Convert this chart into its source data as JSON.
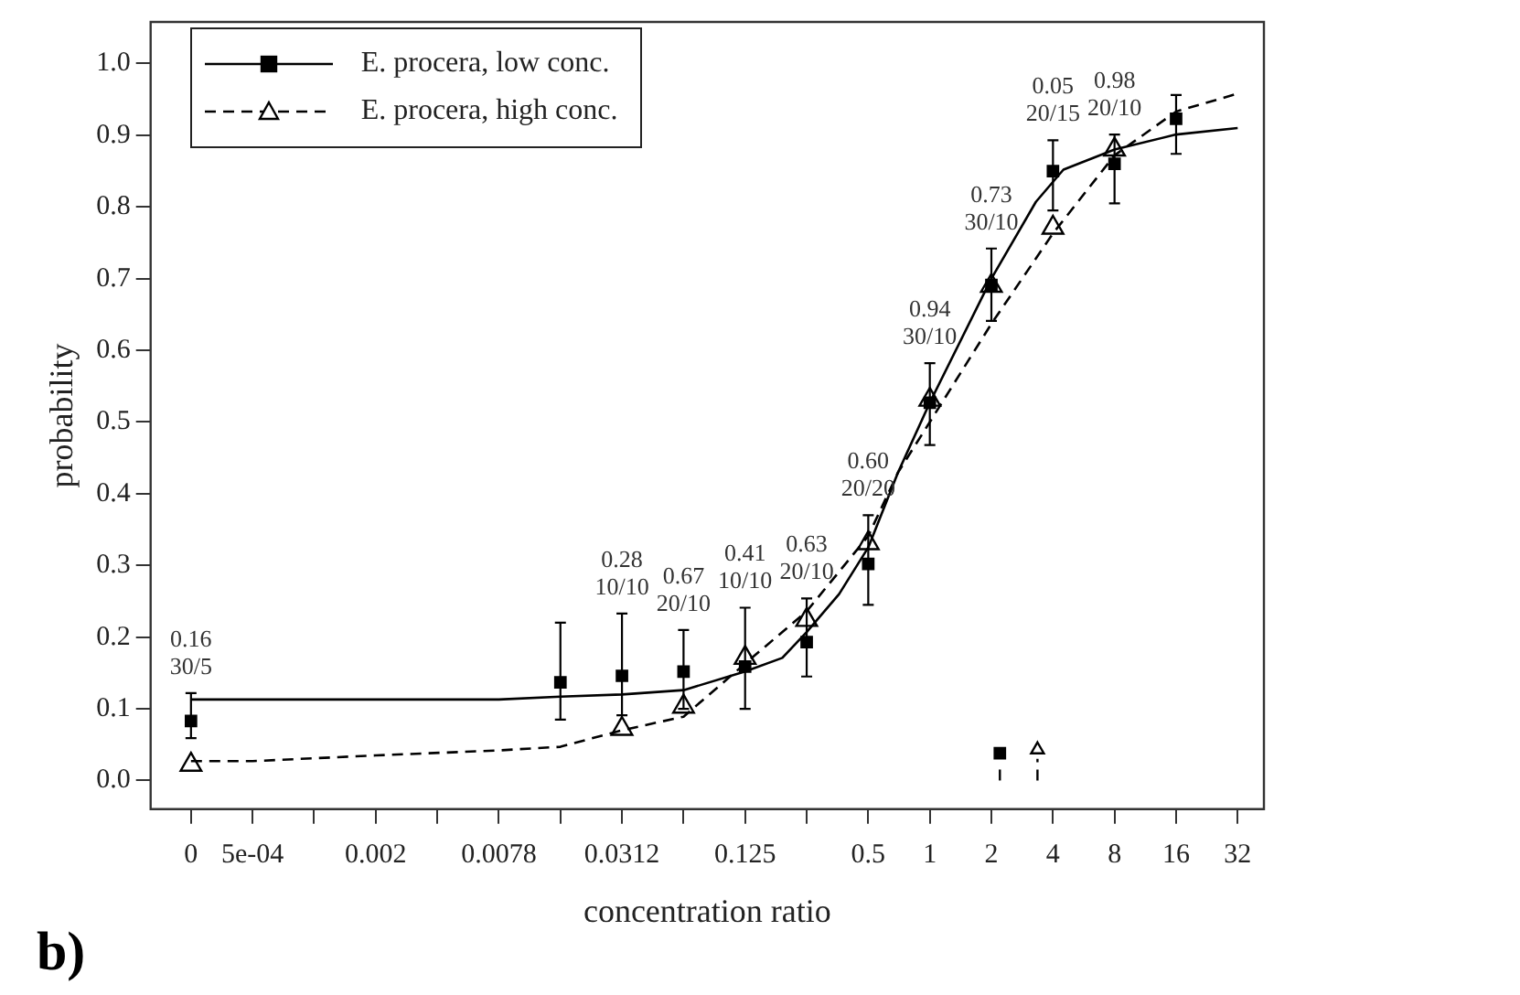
{
  "chart_data": {
    "type": "scatter",
    "xlabel": "concentration ratio",
    "ylabel": "probability",
    "log": "x",
    "grid": false,
    "legend": "top left",
    "xlim": [
      0.000155,
      43
    ],
    "ylim": [
      -0.04,
      1.058
    ],
    "xticks": [
      {
        "value": 0.000244140625,
        "label": "0"
      },
      {
        "value": 0.00048828125,
        "label": "5e-04"
      },
      {
        "value": 0.0009765625,
        "label": null
      },
      {
        "value": 0.001953125,
        "label": "0.002"
      },
      {
        "value": 0.00390625,
        "label": null
      },
      {
        "value": 0.0078125,
        "label": "0.0078"
      },
      {
        "value": 0.015625,
        "label": null
      },
      {
        "value": 0.03125,
        "label": "0.0312"
      },
      {
        "value": 0.0625,
        "label": null
      },
      0.125,
      {
        "value": 0.25,
        "label": null
      },
      0.5,
      1,
      2,
      4,
      8,
      16,
      32
    ],
    "yticks": [
      {
        "value": 0,
        "label": "0.0"
      },
      0.1,
      0.2,
      0.3,
      0.4,
      0.5,
      0.6,
      0.7,
      0.8,
      0.9,
      {
        "value": 1,
        "label": "1.0"
      }
    ],
    "series": [
      {
        "type": "line",
        "color": "#000000",
        "line_style": "solid",
        "marker": "none",
        "x": [
          0.000244140625,
          0.0078125,
          0.015625,
          0.03125,
          0.0625,
          0.125,
          0.19,
          0.25,
          0.36,
          0.5,
          0.7,
          1,
          2,
          3.3,
          4.5,
          8,
          16,
          32
        ],
        "values": [
          0.113,
          0.113,
          0.117,
          0.12,
          0.126,
          0.152,
          0.171,
          0.207,
          0.26,
          0.325,
          0.43,
          0.527,
          0.7,
          0.807,
          0.852,
          0.88,
          0.901,
          0.91
        ]
      },
      {
        "type": "line",
        "color": "#000000",
        "line_style": "dashed",
        "marker": "none",
        "x": [
          0.000244140625,
          0.00048828125,
          0.001953125,
          0.0078125,
          0.015625,
          0.03125,
          0.0625,
          0.125,
          0.25,
          0.5,
          0.7,
          1,
          2,
          4,
          8,
          16,
          32
        ],
        "values": [
          0.027,
          0.027,
          0.035,
          0.042,
          0.047,
          0.07,
          0.089,
          0.163,
          0.236,
          0.341,
          0.43,
          0.5,
          0.637,
          0.763,
          0.872,
          0.933,
          0.958
        ]
      },
      {
        "name": "E. procera, low conc.",
        "color": "#000000",
        "marker": "square",
        "line_style": "solid",
        "x": [
          0.000244140625,
          0.015625,
          0.03125,
          0.0625,
          0.125,
          0.25,
          0.5,
          1,
          2,
          4,
          8,
          16
        ],
        "values": [
          0.083,
          0.137,
          0.146,
          0.152,
          0.159,
          0.193,
          0.302,
          0.527,
          0.691,
          0.85,
          0.86,
          0.923
        ],
        "errors": [
          [
            0.059,
            0.122
          ],
          [
            0.085,
            0.22
          ],
          [
            0.091,
            0.233
          ],
          [
            0.1,
            0.21
          ],
          [
            0.1,
            0.241
          ],
          [
            0.145,
            0.254
          ],
          [
            0.245,
            0.37
          ],
          [
            0.468,
            0.582
          ],
          [
            0.641,
            0.742
          ],
          [
            0.795,
            0.893
          ],
          [
            0.805,
            0.901
          ],
          [
            0.874,
            0.956
          ]
        ]
      },
      {
        "name": "E. procera, high conc.",
        "color": "#000000",
        "marker": "triangle",
        "line_style": "dashed",
        "x": [
          0.000244140625,
          0.03125,
          0.0625,
          0.125,
          0.25,
          0.5,
          1,
          2,
          4,
          8
        ],
        "values": [
          0.022,
          0.072,
          0.103,
          0.171,
          0.224,
          0.331,
          0.531,
          0.69,
          0.771,
          0.88
        ]
      },
      {
        "type": "lollipop",
        "color": "#000000",
        "marker": "square",
        "line_style": "dashed",
        "x": [
          2.2
        ],
        "values": [
          0.038
        ]
      },
      {
        "type": "lollipop",
        "color": "#000000",
        "marker": "triangle",
        "line_style": "dashed",
        "x": [
          3.36
        ],
        "values": [
          0.043
        ]
      }
    ],
    "annotations": [
      {
        "text": "0.16\n30/5",
        "x": 0.000244140625,
        "y": 0.122
      },
      {
        "text": "0.28\n10/10",
        "x": 0.03125,
        "y": 0.233
      },
      {
        "text": "0.67\n20/10",
        "x": 0.0625,
        "y": 0.21
      },
      {
        "text": "0.41\n10/10",
        "x": 0.125,
        "y": 0.241
      },
      {
        "text": "0.63\n20/10",
        "x": 0.25,
        "y": 0.254
      },
      {
        "text": "0.60\n20/20",
        "x": 0.5,
        "y": 0.37
      },
      {
        "text": "0.94\n30/10",
        "x": 1,
        "y": 0.582
      },
      {
        "text": "0.73\n30/10",
        "x": 2,
        "y": 0.742
      },
      {
        "text": "0.05\n20/15",
        "x": 4,
        "y": 0.893
      },
      {
        "text": "0.98\n20/10",
        "x": 8,
        "y": 0.901
      },
      "b)"
    ]
  }
}
